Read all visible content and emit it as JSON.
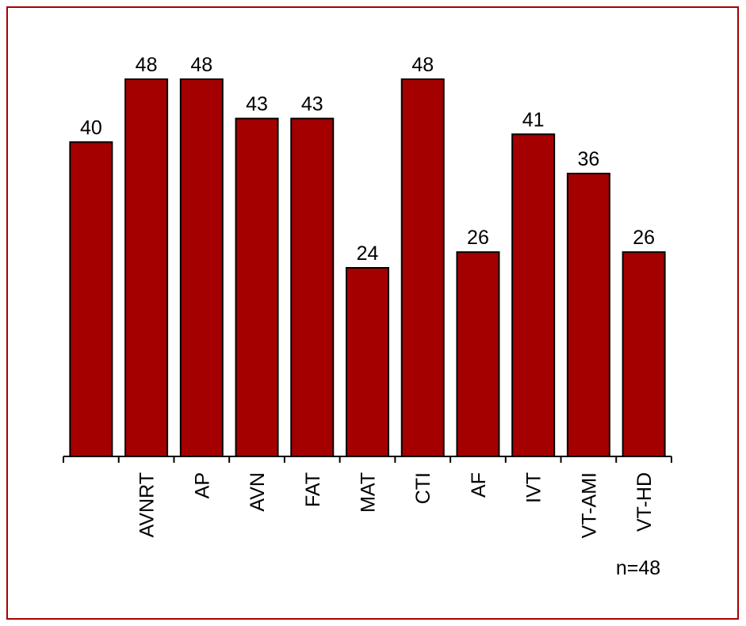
{
  "chart_data": {
    "type": "bar",
    "categories": [
      null,
      "AVNRT",
      "AP",
      "AVN",
      "FAT",
      "MAT",
      "CTI",
      "AF",
      "IVT",
      "VT-AMI",
      "VT-HD"
    ],
    "values": [
      40,
      48,
      48,
      43,
      43,
      24,
      48,
      26,
      41,
      36,
      26
    ],
    "color": "#a50000",
    "ylim": [
      0,
      48
    ],
    "annotation": "n=48"
  }
}
